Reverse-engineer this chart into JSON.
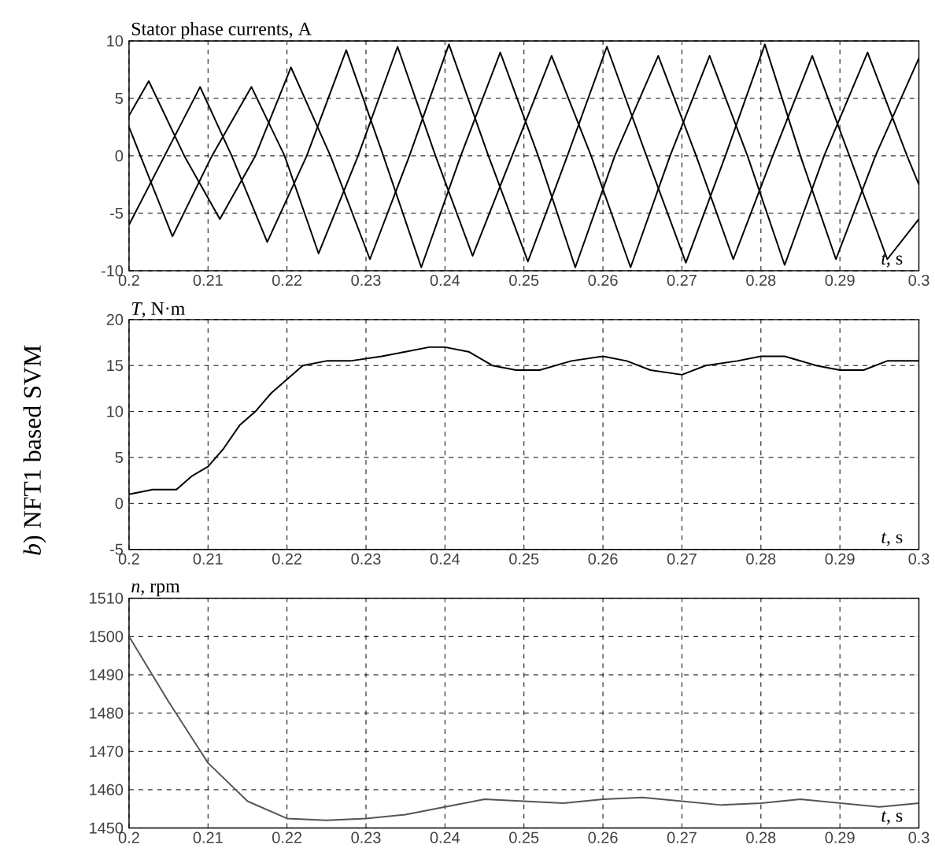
{
  "chart_data": [
    {
      "type": "line",
      "ylabel": "Stator phase currents, A",
      "xlabel": "*t*, s",
      "xlim": [
        0.2,
        0.3
      ],
      "ylim": [
        -10,
        10
      ],
      "xticks": [
        0.2,
        0.21,
        0.22,
        0.23,
        0.24,
        0.25,
        0.26,
        0.27,
        0.28,
        0.29,
        0.3
      ],
      "yticks": [
        -10,
        -5,
        0,
        5,
        10
      ],
      "grid": true,
      "line_style": "solid",
      "marker": "none",
      "series": [
        {
          "color": "#000000",
          "x": [
            0.2,
            0.2025,
            0.207,
            0.2115,
            0.216,
            0.2205,
            0.2255,
            0.2305,
            0.2355,
            0.2405,
            0.2455,
            0.2505,
            0.2555,
            0.2605,
            0.2655,
            0.2705,
            0.2755,
            0.2805,
            0.285,
            0.2895,
            0.2945,
            0.3
          ],
          "values": [
            3.5,
            6.5,
            0,
            -5.5,
            0,
            7.7,
            0,
            -9,
            0,
            9.7,
            0,
            -9.2,
            0,
            9.5,
            0,
            -9.3,
            0,
            9.7,
            0,
            -9,
            0,
            8.5
          ]
        },
        {
          "color": "#000000",
          "x": [
            0.2,
            0.2045,
            0.209,
            0.213,
            0.2175,
            0.2225,
            0.2275,
            0.2322,
            0.237,
            0.242,
            0.247,
            0.2518,
            0.2565,
            0.2615,
            0.267,
            0.2718,
            0.2765,
            0.2815,
            0.2865,
            0.2912,
            0.296,
            0.3
          ],
          "values": [
            -6,
            0,
            6,
            0,
            -7.5,
            0,
            9.2,
            0,
            -9.7,
            0,
            9,
            0,
            -9.7,
            0,
            8.7,
            0,
            -9,
            0,
            8.7,
            0,
            -9,
            -5.5
          ]
        },
        {
          "color": "#000000",
          "x": [
            0.2,
            0.2055,
            0.2105,
            0.2155,
            0.2197,
            0.224,
            0.229,
            0.234,
            0.2388,
            0.2435,
            0.2485,
            0.2535,
            0.2585,
            0.2635,
            0.2685,
            0.2735,
            0.2783,
            0.283,
            0.288,
            0.2935,
            0.2985,
            0.3
          ],
          "values": [
            2.5,
            -7,
            0,
            6,
            0,
            -8.5,
            0,
            9.5,
            0,
            -8.7,
            0,
            8.7,
            0,
            -9.7,
            0,
            8.7,
            0,
            -9.5,
            0,
            9,
            0,
            -2.5
          ]
        }
      ]
    },
    {
      "type": "line",
      "ylabel": "*T*, N·m",
      "xlabel": "*t*, s",
      "xlim": [
        0.2,
        0.3
      ],
      "ylim": [
        -5,
        20
      ],
      "xticks": [
        0.2,
        0.21,
        0.22,
        0.23,
        0.24,
        0.25,
        0.26,
        0.27,
        0.28,
        0.29,
        0.3
      ],
      "yticks": [
        -5,
        0,
        5,
        10,
        15,
        20
      ],
      "grid": true,
      "line_style": "solid",
      "marker": "none",
      "annotations": [
        "*b*) NFT1 based SVM"
      ],
      "x": [
        0.2,
        0.203,
        0.206,
        0.208,
        0.21,
        0.212,
        0.214,
        0.216,
        0.218,
        0.22,
        0.222,
        0.225,
        0.228,
        0.232,
        0.235,
        0.238,
        0.24,
        0.243,
        0.246,
        0.249,
        0.252,
        0.256,
        0.26,
        0.263,
        0.266,
        0.27,
        0.273,
        0.277,
        0.28,
        0.283,
        0.287,
        0.29,
        0.293,
        0.296,
        0.3
      ],
      "series": [
        {
          "color": "#000000",
          "values": [
            1,
            1.5,
            1.5,
            3,
            4,
            6,
            8.5,
            10,
            12,
            13.5,
            15,
            15.5,
            15.5,
            16,
            16.5,
            17,
            17,
            16.5,
            15,
            14.5,
            14.5,
            15.5,
            16,
            15.5,
            14.5,
            14,
            15,
            15.5,
            16,
            16,
            15,
            14.5,
            14.5,
            15.5,
            15.5
          ]
        }
      ]
    },
    {
      "type": "line",
      "ylabel": "*n*, rpm",
      "xlabel": "*t*, s",
      "xlim": [
        0.2,
        0.3
      ],
      "ylim": [
        1450,
        1510
      ],
      "xticks": [
        0.2,
        0.21,
        0.22,
        0.23,
        0.24,
        0.25,
        0.26,
        0.27,
        0.28,
        0.29,
        0.3
      ],
      "yticks": [
        1450,
        1460,
        1470,
        1480,
        1490,
        1500,
        1510
      ],
      "grid": true,
      "line_style": "solid",
      "marker": "none",
      "x": [
        0.2,
        0.205,
        0.21,
        0.215,
        0.22,
        0.225,
        0.23,
        0.235,
        0.24,
        0.245,
        0.25,
        0.255,
        0.26,
        0.265,
        0.27,
        0.275,
        0.28,
        0.285,
        0.29,
        0.295,
        0.3
      ],
      "series": [
        {
          "color": "#555555",
          "values": [
            1500,
            1483,
            1467,
            1457,
            1452.5,
            1452,
            1452.5,
            1453.5,
            1455.5,
            1457.5,
            1457,
            1456.5,
            1457.5,
            1458,
            1457,
            1456,
            1456.5,
            1457.5,
            1456.5,
            1455.5,
            1456.5
          ]
        }
      ]
    }
  ]
}
